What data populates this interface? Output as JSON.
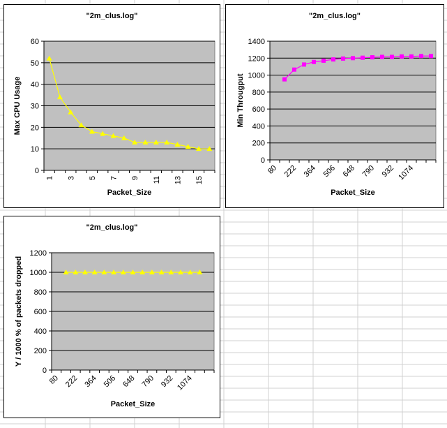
{
  "chart_data": [
    {
      "type": "line",
      "title": "\"2m_clus.log\"",
      "xlabel": "Packet_Size",
      "ylabel": "Max CPU Usage",
      "ylim": [
        0,
        60
      ],
      "yticks": [
        0,
        10,
        20,
        30,
        40,
        50,
        60
      ],
      "categories": [
        "1",
        "2",
        "3",
        "4",
        "5",
        "6",
        "7",
        "8",
        "9",
        "10",
        "11",
        "12",
        "13",
        "14",
        "15",
        "16"
      ],
      "category_labels_shown": [
        "1",
        "3",
        "5",
        "7",
        "9",
        "11",
        "13",
        "15"
      ],
      "series": [
        {
          "values": [
            52,
            34,
            27,
            21,
            18,
            17,
            16,
            15,
            13,
            13,
            13,
            13,
            12,
            11,
            10,
            10
          ],
          "color": "#ffff00",
          "marker": "triangle"
        }
      ],
      "plot_background": "#c0c0c0",
      "grid": true
    },
    {
      "type": "line",
      "title": "\"2m_clus.log\"",
      "xlabel": "Packet_Size",
      "ylabel": "Min Througput",
      "ylim": [
        0,
        1400
      ],
      "yticks": [
        0,
        200,
        400,
        600,
        800,
        1000,
        1200,
        1400
      ],
      "category_labels_shown": [
        "80",
        "222",
        "364",
        "506",
        "648",
        "790",
        "932",
        "1074"
      ],
      "series": [
        {
          "values": [
            950,
            1065,
            1125,
            1155,
            1170,
            1185,
            1195,
            1200,
            1205,
            1210,
            1215,
            1215,
            1220,
            1220,
            1225,
            1225
          ],
          "color": "#ff00ff",
          "marker": "square"
        }
      ],
      "plot_background": "#c0c0c0",
      "grid": true
    },
    {
      "type": "line",
      "title": "\"2m_clus.log\"",
      "xlabel": "Packet_Size",
      "ylabel": "Y / 1000 % of packets dropped",
      "ylim": [
        0,
        1200
      ],
      "yticks": [
        0,
        200,
        400,
        600,
        800,
        1000,
        1200
      ],
      "category_labels_shown": [
        "80",
        "222",
        "364",
        "506",
        "648",
        "790",
        "932",
        "1074"
      ],
      "series": [
        {
          "values": [
            1000,
            1000,
            1000,
            1000,
            1000,
            1000,
            1000,
            1000,
            1000,
            1000,
            1000,
            1000,
            1000,
            1000,
            1000
          ],
          "color": "#ffff00",
          "marker": "triangle"
        }
      ],
      "plot_background": "#c0c0c0",
      "grid": true
    }
  ]
}
